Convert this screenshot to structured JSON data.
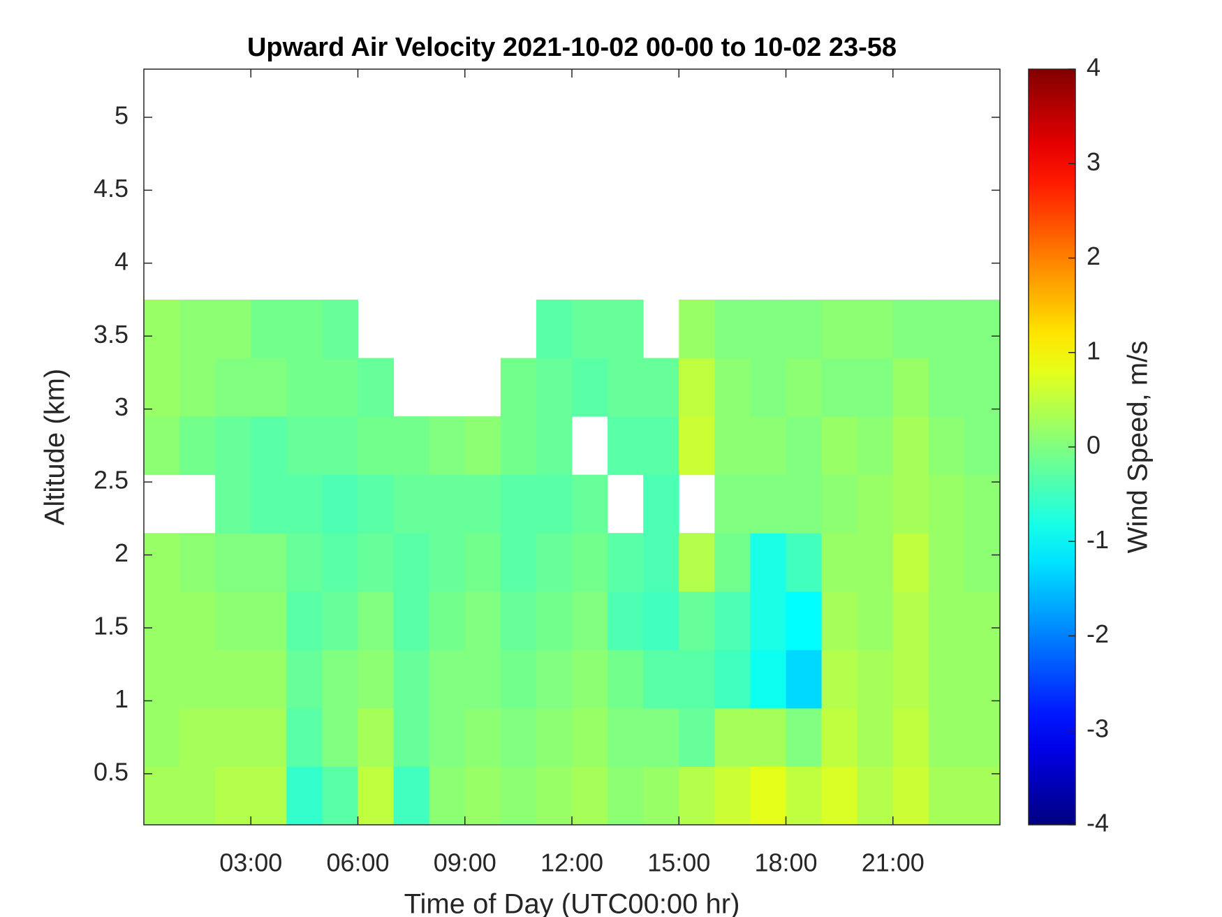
{
  "chart_data": {
    "type": "heatmap",
    "title": "Upward Air Velocity 2021-10-02 00-00 to 10-02 23-58",
    "x_label": "Time of Day (UTC00:00 hr)",
    "y_label": "Altitude (km)",
    "x": [
      0.5,
      1.5,
      2.5,
      3.5,
      4.5,
      5.5,
      6.5,
      7.5,
      8.5,
      9.5,
      10.5,
      11.5,
      12.5,
      13.5,
      14.5,
      15.5,
      16.5,
      17.5,
      18.5,
      19.5,
      20.5,
      21.5,
      22.5,
      23.5
    ],
    "y": [
      0.35,
      0.75,
      1.15,
      1.55,
      1.95,
      2.35,
      2.75,
      3.15,
      3.55
    ],
    "values": [
      [
        0.3,
        0.3,
        0.4,
        0.4,
        -0.6,
        -0.3,
        0.5,
        -0.5,
        0.1,
        0.2,
        0.1,
        0.2,
        0.3,
        0.1,
        0.2,
        0.4,
        0.6,
        0.8,
        0.5,
        0.7,
        0.4,
        0.6,
        0.3,
        0.3
      ],
      [
        0.2,
        0.3,
        0.3,
        0.3,
        -0.3,
        0,
        0.3,
        -0.2,
        0,
        0.1,
        0,
        0.1,
        0.2,
        0,
        0,
        -0.2,
        0.3,
        0.3,
        0,
        0.5,
        0.3,
        0.5,
        0.2,
        0.2
      ],
      [
        0.2,
        0.2,
        0.2,
        0.2,
        -0.2,
        0,
        0.1,
        -0.2,
        0,
        0,
        -0.1,
        0,
        0.1,
        -0.1,
        -0.3,
        -0.3,
        -0.5,
        -0.9,
        -1.3,
        0.4,
        0.3,
        0.4,
        0.2,
        0.2
      ],
      [
        0.2,
        0.2,
        0.1,
        0.1,
        -0.3,
        -0.2,
        0,
        -0.3,
        -0.1,
        0,
        -0.2,
        -0.1,
        0,
        -0.4,
        -0.5,
        -0.2,
        -0.4,
        -0.8,
        -1.0,
        0.3,
        0.2,
        0.4,
        0.2,
        0.2
      ],
      [
        0.2,
        0.1,
        0,
        0,
        -0.2,
        -0.3,
        -0.2,
        -0.3,
        -0.2,
        -0.1,
        -0.3,
        -0.2,
        -0.1,
        -0.3,
        -0.4,
        0.4,
        -0.1,
        -0.8,
        -0.5,
        0.2,
        0.2,
        0.5,
        0.2,
        0.1
      ],
      [
        null,
        null,
        -0.2,
        -0.3,
        -0.3,
        -0.4,
        -0.3,
        -0.2,
        -0.2,
        -0.2,
        -0.3,
        -0.3,
        -0.2,
        null,
        -0.4,
        null,
        0,
        0,
        0,
        0.1,
        0.2,
        0.3,
        0.2,
        0.1
      ],
      [
        0.1,
        -0.1,
        -0.2,
        -0.3,
        -0.2,
        -0.2,
        -0.1,
        -0.1,
        0,
        0.1,
        -0.1,
        -0.2,
        null,
        -0.3,
        -0.3,
        0.6,
        0.1,
        0.1,
        0,
        0.2,
        0.1,
        0.3,
        0.1,
        0
      ],
      [
        0.2,
        0.1,
        0,
        0,
        -0.1,
        -0.1,
        -0.2,
        null,
        null,
        null,
        -0.1,
        -0.2,
        -0.3,
        -0.2,
        -0.2,
        0.5,
        0.1,
        0,
        0.1,
        0,
        0,
        0.2,
        0,
        0
      ],
      [
        0.2,
        0.1,
        0.1,
        -0.1,
        -0.1,
        -0.2,
        null,
        null,
        null,
        null,
        null,
        -0.3,
        -0.2,
        -0.2,
        null,
        0.2,
        0,
        0,
        0,
        0.1,
        0.1,
        0,
        0,
        0
      ]
    ],
    "xlim": [
      0,
      24
    ],
    "xticks": [
      {
        "value": 3,
        "label": "03:00"
      },
      {
        "value": 6,
        "label": "06:00"
      },
      {
        "value": 9,
        "label": "09:00"
      },
      {
        "value": 12,
        "label": "12:00"
      },
      {
        "value": 15,
        "label": "15:00"
      },
      {
        "value": 18,
        "label": "18:00"
      },
      {
        "value": 21,
        "label": "21:00"
      }
    ],
    "ylim": [
      0.15,
      5.33
    ],
    "yticks": [
      0.5,
      1,
      1.5,
      2,
      2.5,
      3,
      3.5,
      4,
      4.5,
      5
    ],
    "colormap": "jet",
    "colorbar": {
      "label": "Wind Speed, m/s",
      "clim": [
        -4,
        4
      ],
      "ticks": [
        -4,
        -3,
        -2,
        -1,
        0,
        1,
        2,
        3,
        4
      ]
    }
  }
}
